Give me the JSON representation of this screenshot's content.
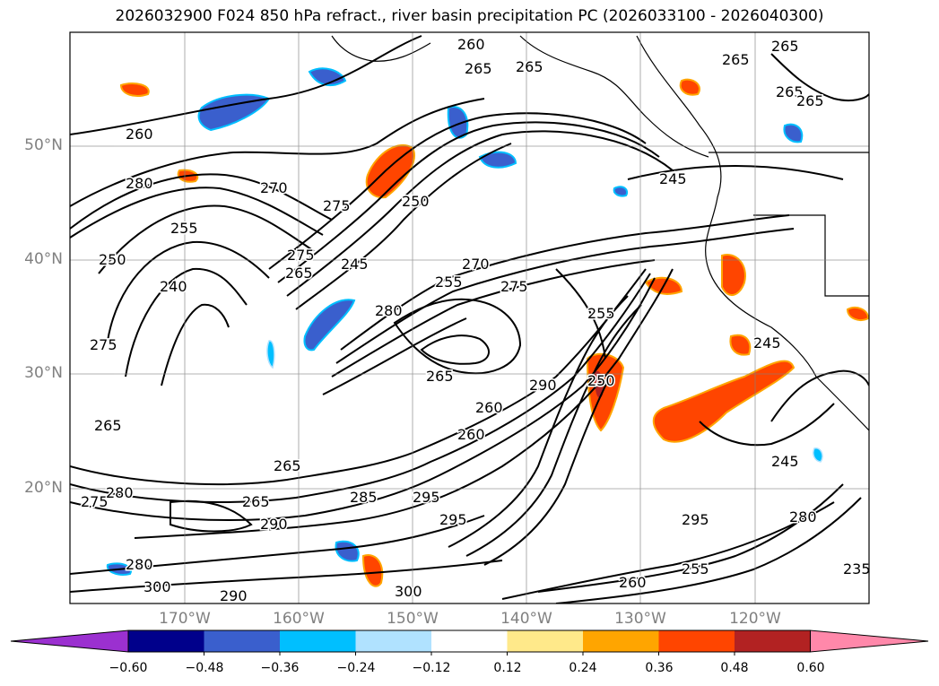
{
  "title": "2026032900 F024 850 hPa refract., river basin precipitation PC (2026033100 - 2026040300)",
  "lat_labels": [
    "50°N",
    "40°N",
    "30°N",
    "20°N"
  ],
  "lon_labels": [
    "170°W",
    "160°W",
    "150°W",
    "140°W",
    "130°W",
    "120°W"
  ],
  "colorbar": {
    "ticks": [
      "−0.60",
      "−0.48",
      "−0.36",
      "−0.24",
      "−0.12",
      "0.12",
      "0.24",
      "0.36",
      "0.48",
      "0.60"
    ],
    "colors": [
      "#9b30d0",
      "#00008b",
      "#3a5fcd",
      "#00bfff",
      "#b0e2ff",
      "#ffffff",
      "#ffe98a",
      "#ffa500",
      "#ff4500",
      "#b22222",
      "#ff88aa"
    ]
  },
  "contour_labels": [
    "260",
    "265",
    "265",
    "265",
    "265",
    "265",
    "265",
    "260",
    "280",
    "270",
    "275",
    "250",
    "255",
    "250",
    "240",
    "275",
    "265",
    "245",
    "255",
    "270",
    "275",
    "265",
    "260",
    "280",
    "255",
    "245",
    "275",
    "265",
    "265",
    "260",
    "290",
    "250",
    "265",
    "275",
    "280",
    "285",
    "290",
    "300",
    "295",
    "280",
    "300",
    "295",
    "290",
    "245",
    "280",
    "295",
    "245",
    "235",
    "255",
    "260"
  ]
}
